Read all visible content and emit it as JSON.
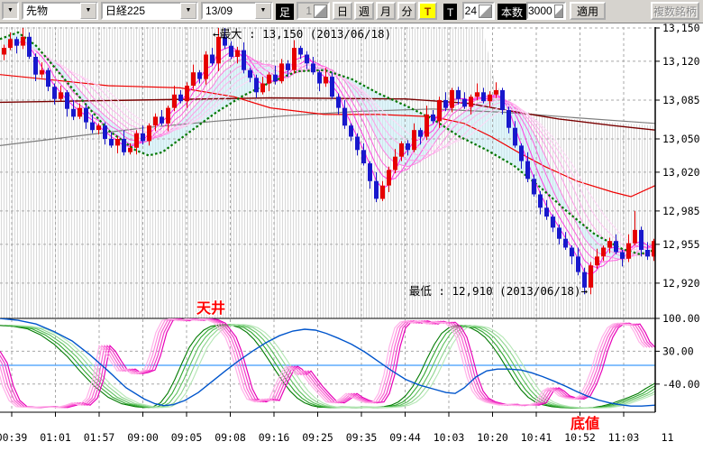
{
  "toolbar": {
    "corner_dropdown": "▼",
    "market_select": "先物",
    "symbol_select": "日経225",
    "contract_select": "13/09",
    "bar_label": "足",
    "bar_value": "1",
    "period_buttons": [
      {
        "label": "日",
        "active": false
      },
      {
        "label": "週",
        "active": false
      },
      {
        "label": "月",
        "active": false
      },
      {
        "label": "分",
        "active": false
      },
      {
        "label": "T",
        "active": true
      }
    ],
    "tick_label": "T",
    "tick_value": "24",
    "count_label": "本数",
    "count_value": "3000",
    "apply_label": "適用",
    "multi_symbol_label": "複数銘柄"
  },
  "chart_data": {
    "type": "candlestick",
    "instrument": "日経225 先物 13/09",
    "annotations": {
      "max_label": "←最大 : 13,150 (2013/06/18)",
      "min_label": "最低 : 12,910 (2013/06/18)→",
      "ceiling_label": "天井",
      "bottom_label": "底値"
    },
    "price_axis": {
      "tick_values": [
        13150,
        13120,
        13085,
        13050,
        13020,
        12985,
        12955,
        12920
      ],
      "tick_labels": [
        "13,150",
        "13,120",
        "13,085",
        "13,050",
        "13,020",
        "12,985",
        "12,955",
        "12,920"
      ]
    },
    "time_axis": {
      "tick_labels": [
        "00:39",
        "01:01",
        "01:57",
        "09:00",
        "09:05",
        "09:08",
        "09:16",
        "09:25",
        "09:35",
        "09:44",
        "10:03",
        "10:20",
        "10:41",
        "10:52",
        "11:03",
        "11"
      ]
    },
    "first_open": 13126,
    "closes": [
      13132,
      13140,
      13134,
      13142,
      13124,
      13108,
      13112,
      13097,
      13086,
      13092,
      13077,
      13070,
      13078,
      13065,
      13058,
      13062,
      13050,
      13044,
      13050,
      13038,
      13042,
      13055,
      13048,
      13062,
      13070,
      13064,
      13078,
      13090,
      13084,
      13098,
      13110,
      13104,
      13126,
      13118,
      13142,
      13134,
      13124,
      13130,
      13112,
      13105,
      13092,
      13100,
      13108,
      13102,
      13118,
      13112,
      13132,
      13126,
      13118,
      13110,
      13100,
      13106,
      13088,
      13078,
      13062,
      13052,
      13040,
      13028,
      13012,
      12996,
      13008,
      13022,
      13034,
      13046,
      13040,
      13058,
      13052,
      13072,
      13066,
      13085,
      13078,
      13094,
      13086,
      13079,
      13088,
      13092,
      13084,
      13090,
      13094,
      13076,
      13060,
      13044,
      13030,
      13014,
      13000,
      12988,
      12980,
      12970,
      12960,
      12952,
      12944,
      12930,
      12916,
      12936,
      12944,
      12952,
      12958,
      12948,
      12942,
      12956,
      12968,
      12950,
      12944,
      12958
    ],
    "wick_up_pattern": [
      3,
      6,
      2,
      8,
      4,
      3,
      7,
      2
    ],
    "wick_dn_pattern": [
      5,
      2,
      7,
      3,
      2,
      6,
      3,
      4
    ],
    "wick_overrides": {
      "34": {
        "high": 13150
      },
      "92": {
        "low": 12910
      },
      "100": {
        "high": 12985
      }
    },
    "ribbon_periods": [
      3,
      5,
      7,
      9,
      11,
      13,
      15,
      17
    ],
    "overlays": {
      "green_ma": [
        [
          0,
          13140
        ],
        [
          20,
          13146
        ],
        [
          40,
          13134
        ],
        [
          60,
          13115
        ],
        [
          90,
          13086
        ],
        [
          120,
          13058
        ],
        [
          150,
          13040
        ],
        [
          165,
          13035
        ],
        [
          180,
          13038
        ],
        [
          210,
          13056
        ],
        [
          240,
          13074
        ],
        [
          270,
          13089
        ],
        [
          300,
          13101
        ],
        [
          330,
          13111
        ],
        [
          360,
          13112
        ],
        [
          390,
          13104
        ],
        [
          420,
          13091
        ],
        [
          450,
          13080
        ],
        [
          480,
          13068
        ],
        [
          510,
          13052
        ],
        [
          540,
          13040
        ],
        [
          570,
          13026
        ],
        [
          600,
          13006
        ],
        [
          630,
          12984
        ],
        [
          660,
          12964
        ],
        [
          690,
          12951
        ],
        [
          710,
          12946
        ],
        [
          727,
          12950
        ]
      ],
      "red_envelope": [
        [
          0,
          13108
        ],
        [
          60,
          13103
        ],
        [
          120,
          13098
        ],
        [
          200,
          13096
        ],
        [
          260,
          13088
        ],
        [
          300,
          13078
        ],
        [
          360,
          13072
        ],
        [
          420,
          13072
        ],
        [
          480,
          13070
        ],
        [
          515,
          13064
        ],
        [
          545,
          13052
        ],
        [
          575,
          13038
        ],
        [
          605,
          13025
        ],
        [
          640,
          13012
        ],
        [
          680,
          13002
        ],
        [
          700,
          12998
        ],
        [
          727,
          13008
        ]
      ],
      "maroon_ma": [
        [
          0,
          13083
        ],
        [
          150,
          13085
        ],
        [
          300,
          13087
        ],
        [
          450,
          13086
        ],
        [
          520,
          13082
        ],
        [
          560,
          13076
        ],
        [
          620,
          13068
        ],
        [
          680,
          13062
        ],
        [
          727,
          13058
        ]
      ],
      "gray_ma": [
        [
          0,
          13044
        ],
        [
          80,
          13052
        ],
        [
          160,
          13060
        ],
        [
          240,
          13066
        ],
        [
          320,
          13071
        ],
        [
          400,
          13075
        ],
        [
          480,
          13077
        ],
        [
          560,
          13074
        ],
        [
          640,
          13069
        ],
        [
          727,
          13064
        ]
      ],
      "hatch_top": [
        [
          0,
          13152
        ],
        [
          535,
          13152
        ],
        [
          548,
          13105
        ],
        [
          560,
          13085
        ],
        [
          580,
          13075
        ],
        [
          610,
          13070
        ],
        [
          660,
          13066
        ],
        [
          727,
          13062
        ]
      ]
    },
    "lower_panel": {
      "tick_values": [
        100,
        30,
        -40
      ],
      "tick_labels": [
        "100.00",
        "30.00",
        "-40.00"
      ],
      "range": [
        -100,
        100
      ],
      "cyan_level": 0,
      "magenta_base": [
        [
          0,
          30
        ],
        [
          8,
          5
        ],
        [
          15,
          -45
        ],
        [
          22,
          -75
        ],
        [
          30,
          -88
        ],
        [
          45,
          -90
        ],
        [
          60,
          -88
        ],
        [
          75,
          -90
        ],
        [
          85,
          -85
        ],
        [
          92,
          -80
        ],
        [
          100,
          -85
        ],
        [
          108,
          -70
        ],
        [
          115,
          -30
        ],
        [
          122,
          42
        ],
        [
          128,
          30
        ],
        [
          135,
          8
        ],
        [
          142,
          -12
        ],
        [
          150,
          -8
        ],
        [
          158,
          -18
        ],
        [
          165,
          -15
        ],
        [
          172,
          -10
        ],
        [
          178,
          20
        ],
        [
          185,
          70
        ],
        [
          192,
          96
        ],
        [
          200,
          99
        ],
        [
          210,
          95
        ],
        [
          218,
          99
        ],
        [
          226,
          96
        ],
        [
          234,
          99
        ],
        [
          242,
          97
        ],
        [
          250,
          90
        ],
        [
          256,
          75
        ],
        [
          262,
          60
        ],
        [
          268,
          30
        ],
        [
          274,
          -10
        ],
        [
          280,
          -50
        ],
        [
          286,
          -72
        ],
        [
          295,
          -78
        ],
        [
          303,
          -72
        ],
        [
          310,
          -75
        ],
        [
          318,
          -40
        ],
        [
          326,
          -10
        ],
        [
          330,
          -2
        ],
        [
          335,
          -8
        ],
        [
          340,
          -20
        ],
        [
          345,
          -12
        ],
        [
          350,
          -25
        ],
        [
          358,
          -45
        ],
        [
          366,
          -62
        ],
        [
          374,
          -78
        ],
        [
          382,
          -80
        ],
        [
          390,
          -70
        ],
        [
          396,
          -60
        ],
        [
          402,
          -68
        ],
        [
          410,
          -75
        ],
        [
          418,
          -80
        ],
        [
          426,
          -78
        ],
        [
          432,
          -60
        ],
        [
          438,
          -20
        ],
        [
          444,
          40
        ],
        [
          450,
          80
        ],
        [
          456,
          92
        ],
        [
          462,
          95
        ],
        [
          468,
          90
        ],
        [
          474,
          95
        ],
        [
          480,
          92
        ],
        [
          486,
          88
        ],
        [
          492,
          94
        ],
        [
          498,
          90
        ],
        [
          505,
          92
        ],
        [
          512,
          80
        ],
        [
          518,
          60
        ],
        [
          524,
          20
        ],
        [
          530,
          -25
        ],
        [
          536,
          -55
        ],
        [
          542,
          -70
        ],
        [
          550,
          -78
        ],
        [
          558,
          -82
        ],
        [
          566,
          -85
        ],
        [
          574,
          -83
        ],
        [
          582,
          -86
        ],
        [
          590,
          -84
        ],
        [
          598,
          -85
        ],
        [
          606,
          -80
        ],
        [
          614,
          -55
        ],
        [
          620,
          -48
        ],
        [
          626,
          -55
        ],
        [
          632,
          -65
        ],
        [
          640,
          -70
        ],
        [
          648,
          -72
        ],
        [
          655,
          -65
        ],
        [
          662,
          -40
        ],
        [
          668,
          -10
        ],
        [
          674,
          30
        ],
        [
          680,
          60
        ],
        [
          686,
          80
        ],
        [
          692,
          88
        ],
        [
          698,
          90
        ],
        [
          704,
          86
        ],
        [
          710,
          88
        ],
        [
          716,
          70
        ],
        [
          721,
          50
        ],
        [
          727,
          38
        ]
      ],
      "green_base": [
        [
          0,
          85
        ],
        [
          15,
          83
        ],
        [
          30,
          78
        ],
        [
          45,
          65
        ],
        [
          60,
          45
        ],
        [
          75,
          18
        ],
        [
          90,
          -15
        ],
        [
          105,
          -45
        ],
        [
          120,
          -68
        ],
        [
          135,
          -82
        ],
        [
          150,
          -88
        ],
        [
          160,
          -90
        ],
        [
          170,
          -88
        ],
        [
          178,
          -80
        ],
        [
          186,
          -60
        ],
        [
          194,
          -30
        ],
        [
          202,
          5
        ],
        [
          210,
          38
        ],
        [
          218,
          60
        ],
        [
          226,
          75
        ],
        [
          234,
          83
        ],
        [
          242,
          86
        ],
        [
          250,
          87
        ],
        [
          258,
          85
        ],
        [
          266,
          80
        ],
        [
          274,
          70
        ],
        [
          282,
          55
        ],
        [
          290,
          35
        ],
        [
          298,
          12
        ],
        [
          306,
          -12
        ],
        [
          314,
          -35
        ],
        [
          322,
          -55
        ],
        [
          330,
          -70
        ],
        [
          338,
          -80
        ],
        [
          346,
          -86
        ],
        [
          354,
          -89
        ],
        [
          366,
          -90
        ],
        [
          378,
          -89
        ],
        [
          390,
          -90
        ],
        [
          402,
          -89
        ],
        [
          414,
          -90
        ],
        [
          426,
          -88
        ],
        [
          434,
          -85
        ],
        [
          442,
          -78
        ],
        [
          450,
          -65
        ],
        [
          458,
          -45
        ],
        [
          466,
          -18
        ],
        [
          474,
          15
        ],
        [
          482,
          45
        ],
        [
          490,
          68
        ],
        [
          498,
          80
        ],
        [
          506,
          85
        ],
        [
          514,
          83
        ],
        [
          522,
          80
        ],
        [
          530,
          72
        ],
        [
          538,
          60
        ],
        [
          546,
          42
        ],
        [
          554,
          20
        ],
        [
          562,
          -5
        ],
        [
          570,
          -30
        ],
        [
          578,
          -52
        ],
        [
          586,
          -68
        ],
        [
          594,
          -78
        ],
        [
          602,
          -84
        ],
        [
          612,
          -88
        ],
        [
          622,
          -90
        ],
        [
          634,
          -91
        ],
        [
          646,
          -91
        ],
        [
          658,
          -90
        ],
        [
          668,
          -87
        ],
        [
          678,
          -82
        ],
        [
          688,
          -75
        ],
        [
          698,
          -68
        ],
        [
          708,
          -60
        ],
        [
          716,
          -50
        ],
        [
          727,
          -38
        ]
      ],
      "blue_line": [
        [
          0,
          100
        ],
        [
          20,
          96
        ],
        [
          40,
          88
        ],
        [
          60,
          72
        ],
        [
          80,
          52
        ],
        [
          100,
          22
        ],
        [
          120,
          -12
        ],
        [
          140,
          -48
        ],
        [
          160,
          -72
        ],
        [
          172,
          -82
        ],
        [
          182,
          -86
        ],
        [
          192,
          -84
        ],
        [
          205,
          -75
        ],
        [
          220,
          -58
        ],
        [
          235,
          -35
        ],
        [
          250,
          -12
        ],
        [
          265,
          10
        ],
        [
          280,
          30
        ],
        [
          295,
          48
        ],
        [
          310,
          63
        ],
        [
          325,
          73
        ],
        [
          338,
          77
        ],
        [
          350,
          75
        ],
        [
          362,
          68
        ],
        [
          375,
          58
        ],
        [
          390,
          45
        ],
        [
          405,
          28
        ],
        [
          420,
          8
        ],
        [
          435,
          -12
        ],
        [
          450,
          -30
        ],
        [
          465,
          -42
        ],
        [
          480,
          -50
        ],
        [
          495,
          -58
        ],
        [
          505,
          -60
        ],
        [
          515,
          -48
        ],
        [
          528,
          -25
        ],
        [
          540,
          -12
        ],
        [
          552,
          -8
        ],
        [
          565,
          -8
        ],
        [
          578,
          -10
        ],
        [
          590,
          -16
        ],
        [
          602,
          -24
        ],
        [
          615,
          -34
        ],
        [
          628,
          -45
        ],
        [
          640,
          -56
        ],
        [
          652,
          -66
        ],
        [
          664,
          -74
        ],
        [
          676,
          -80
        ],
        [
          688,
          -84
        ],
        [
          700,
          -87
        ],
        [
          712,
          -87
        ],
        [
          727,
          -85
        ]
      ]
    },
    "colors": {
      "candle_up": "#e60000",
      "candle_down": "#1818cc",
      "ribbon": [
        "#ff1ae8",
        "#ff3ce2",
        "#ff5ede",
        "#ff7fdf",
        "#ff9ae6",
        "#ffb1ec",
        "#ffc6f1",
        "#ffd8f6"
      ],
      "green_ma": "#007700",
      "red_envelope": "#ee0000",
      "maroon_ma": "#7a0000",
      "gray_ma": "#7d7d7d",
      "grid": "#a8a8a8",
      "hatch": "#d9d9d9",
      "cyan_fill": "#c9eef7",
      "magenta_family": [
        "#e800b8",
        "#f23cc8",
        "#f965d2",
        "#ff8fde",
        "#ffb3e9"
      ],
      "green_family": [
        "#007a00",
        "#2ea52e",
        "#5cbf5c",
        "#8cd48c",
        "#b4e6b4"
      ],
      "blue_line": "#0055cc",
      "cyan_line": "#3d9bfc",
      "annotation_red": "#ff0000"
    }
  }
}
